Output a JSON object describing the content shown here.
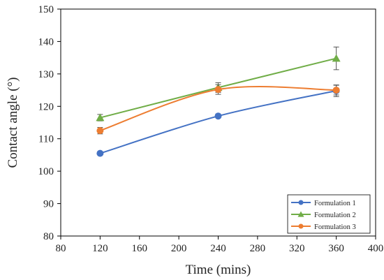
{
  "chart_data": {
    "type": "line",
    "xlabel": "Time (mins)",
    "ylabel": "Contact angle (°)",
    "xlim": [
      80,
      400
    ],
    "ylim": [
      80,
      150
    ],
    "xticks": [
      80,
      120,
      160,
      200,
      240,
      280,
      320,
      360,
      400
    ],
    "yticks": [
      80,
      90,
      100,
      110,
      120,
      130,
      140,
      150
    ],
    "grid": false,
    "legend_position": "bottom-right",
    "series": [
      {
        "name": "Formulation 1",
        "color": "#4472C4",
        "marker": "circle",
        "smooth": true,
        "x": [
          120,
          240,
          360
        ],
        "y": [
          105.5,
          117.0,
          124.8
        ],
        "err": [
          0.4,
          0.5,
          1.8
        ]
      },
      {
        "name": "Formulation 2",
        "color": "#70AD47",
        "marker": "triangle",
        "smooth": false,
        "x": [
          120,
          240,
          360
        ],
        "y": [
          116.5,
          125.8,
          134.8
        ],
        "err": [
          1.0,
          1.5,
          3.5
        ]
      },
      {
        "name": "Formulation 3",
        "color": "#ED7D31",
        "marker": "circle",
        "smooth": true,
        "x": [
          120,
          240,
          360
        ],
        "y": [
          112.5,
          125.2,
          125.0
        ],
        "err": [
          1.0,
          1.5,
          1.5
        ]
      }
    ]
  }
}
